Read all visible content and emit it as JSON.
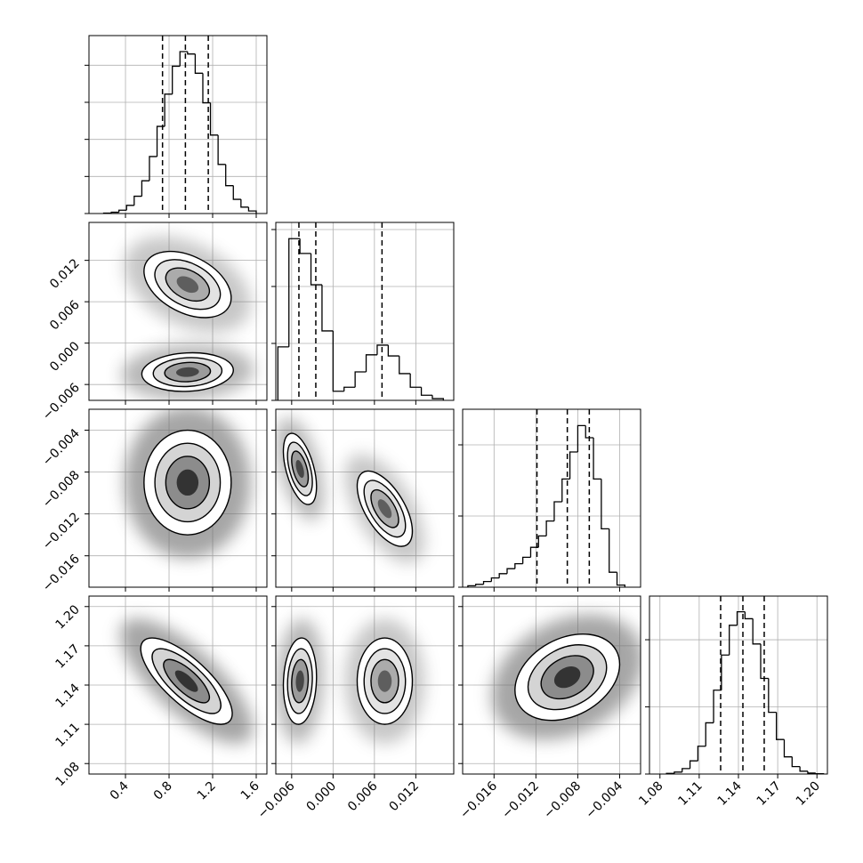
{
  "chart_data": {
    "type": "corner",
    "grid": true,
    "contour_levels": [
      2.0,
      1.5,
      1.0,
      0.5
    ],
    "params": [
      {
        "lim": [
          0.065,
          1.698
        ],
        "ticks": [
          0.4,
          0.8,
          1.2,
          1.6
        ]
      },
      {
        "lim": [
          -0.0083,
          0.0175
        ],
        "ticks": [
          {
            "value": -0.006,
            "label": "−0.006"
          },
          {
            "value": 0,
            "label": "0.000"
          },
          0.006,
          0.012
        ]
      },
      {
        "lim": [
          -0.019,
          -0.002
        ],
        "ticks": [
          {
            "value": -0.016,
            "label": "−0.016"
          },
          {
            "value": -0.012,
            "label": "−0.012"
          },
          {
            "value": -0.008,
            "label": "−0.008"
          },
          {
            "value": -0.004,
            "label": "−0.004"
          }
        ]
      },
      {
        "lim": [
          1.072,
          1.208
        ],
        "ticks": [
          1.08,
          1.11,
          1.14,
          1.17,
          {
            "value": 1.2,
            "label": "1.20"
          }
        ]
      }
    ],
    "histograms": [
      {
        "bins": [
          0.2,
          0.27,
          0.34,
          0.41,
          0.48,
          0.55,
          0.62,
          0.69,
          0.76,
          0.83,
          0.9,
          0.97,
          1.04,
          1.11,
          1.18,
          1.25,
          1.32,
          1.39,
          1.46,
          1.53,
          1.6
        ],
        "counts": [
          11,
          34,
          90,
          220,
          466,
          884,
          1537,
          2350,
          3220,
          3974,
          4368,
          4303,
          3784,
          2986,
          2116,
          1324,
          752,
          383,
          172,
          69
        ],
        "ylim": [
          0,
          4800
        ],
        "yticks": [
          0,
          1000,
          2000,
          3000,
          4000
        ],
        "quantiles": [
          0.74,
          0.95,
          1.16
        ]
      },
      {
        "bins": [
          -0.008,
          -0.0064,
          -0.0048,
          -0.0032,
          -0.0016,
          0,
          0.0016,
          0.0032,
          0.0048,
          0.0064,
          0.008,
          0.0096,
          0.0112,
          0.0128,
          0.0144,
          0.016
        ],
        "counts": [
          940,
          2840,
          2580,
          2030,
          1220,
          160,
          230,
          500,
          800,
          970,
          780,
          470,
          230,
          90,
          30
        ],
        "ylim": [
          0,
          3125
        ],
        "yticks": [
          0,
          1000,
          2000,
          3000
        ],
        "quantiles": [
          -0.00495,
          -0.0025,
          0.0071
        ]
      },
      {
        "bins": [
          -0.0185,
          -0.01775,
          -0.017,
          -0.01625,
          -0.0155,
          -0.01475,
          -0.014,
          -0.01325,
          -0.0125,
          -0.01175,
          -0.011,
          -0.01025,
          -0.0095,
          -0.00875,
          -0.008,
          -0.00725,
          -0.0065,
          -0.00575,
          -0.005,
          -0.00425,
          -0.0035
        ],
        "counts": [
          20,
          40,
          80,
          130,
          190,
          260,
          330,
          420,
          560,
          720,
          930,
          1200,
          1520,
          1900,
          2270,
          2100,
          1520,
          820,
          210,
          30
        ],
        "ylim": [
          0,
          2500
        ],
        "yticks": [
          0,
          1000,
          2000
        ],
        "quantiles": [
          -0.0119,
          -0.009,
          -0.0069
        ]
      },
      {
        "bins": [
          1.085,
          1.091,
          1.097,
          1.103,
          1.109,
          1.115,
          1.121,
          1.127,
          1.133,
          1.139,
          1.145,
          1.151,
          1.157,
          1.163,
          1.169,
          1.175,
          1.181,
          1.187,
          1.193,
          1.199,
          1.205
        ],
        "counts": [
          9,
          29,
          81,
          196,
          414,
          763,
          1249,
          1772,
          2215,
          2416,
          2313,
          1937,
          1424,
          919,
          514,
          256,
          111,
          42,
          14,
          4
        ],
        "ylim": [
          0,
          2650
        ],
        "yticks": [
          0,
          1000,
          2000
        ],
        "quantiles": [
          1.1264,
          1.1434,
          1.1597
        ]
      }
    ],
    "panels": [
      {
        "x": 0,
        "y": 1,
        "components": [
          {
            "x": 0.97,
            "y": 0.0085,
            "sx": 0.2,
            "sy": 0.0024,
            "rho": -0.4,
            "weight": 0.35
          },
          {
            "x": 0.97,
            "y": -0.0042,
            "sx": 0.21,
            "sy": 0.0014,
            "rho": 0.1,
            "weight": 0.65
          }
        ]
      },
      {
        "x": 0,
        "y": 2,
        "components": [
          {
            "x": 0.97,
            "y": -0.009,
            "sx": 0.2,
            "sy": 0.0025,
            "rho": 0.0,
            "weight": 1.0
          }
        ]
      },
      {
        "x": 1,
        "y": 2,
        "components": [
          {
            "x": -0.0048,
            "y": -0.0077,
            "sx": 0.0012,
            "sy": 0.0017,
            "rho": -0.5,
            "weight": 0.65
          },
          {
            "x": 0.0075,
            "y": -0.0115,
            "sx": 0.002,
            "sy": 0.0018,
            "rho": -0.6,
            "weight": 0.35
          }
        ]
      },
      {
        "x": 0,
        "y": 3,
        "components": [
          {
            "x": 0.96,
            "y": 1.143,
            "sx": 0.21,
            "sy": 0.0165,
            "rho": -0.75,
            "weight": 1.0
          }
        ]
      },
      {
        "x": 1,
        "y": 3,
        "components": [
          {
            "x": -0.0048,
            "y": 1.143,
            "sx": 0.0012,
            "sy": 0.0165,
            "rho": 0.1,
            "weight": 0.65
          },
          {
            "x": 0.0075,
            "y": 1.143,
            "sx": 0.002,
            "sy": 0.0165,
            "rho": 0.0,
            "weight": 0.35
          }
        ]
      },
      {
        "x": 2,
        "y": 3,
        "components": [
          {
            "x": -0.009,
            "y": 1.146,
            "sx": 0.0025,
            "sy": 0.0165,
            "rho": 0.3,
            "weight": 1.0
          }
        ]
      }
    ]
  }
}
